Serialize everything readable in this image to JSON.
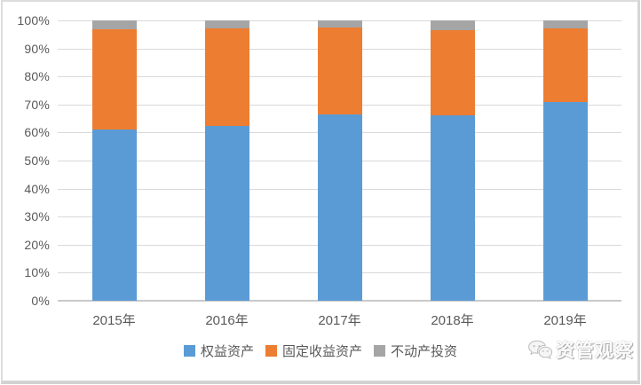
{
  "watermark": {
    "text": "资管观察",
    "icon": "wechat-icon"
  },
  "chart_data": {
    "type": "bar",
    "variant": "stacked-100-percent-column",
    "title": "",
    "xlabel": "",
    "ylabel": "",
    "categories": [
      "2015年",
      "2016年",
      "2017年",
      "2018年",
      "2019年"
    ],
    "series": [
      {
        "name": "权益资产",
        "color": "#5B9BD5",
        "values": [
          61,
          62.5,
          66.5,
          66,
          71
        ]
      },
      {
        "name": "固定收益资产",
        "color": "#ED7D31",
        "values": [
          36,
          34.5,
          31,
          30.5,
          26
        ]
      },
      {
        "name": "不动产投资",
        "color": "#A5A5A5",
        "values": [
          3,
          3,
          2.5,
          3.5,
          3
        ]
      }
    ],
    "ylim": [
      0,
      100
    ],
    "yticks": [
      0,
      10,
      20,
      30,
      40,
      50,
      60,
      70,
      80,
      90,
      100
    ],
    "ytick_labels": [
      "0%",
      "10%",
      "20%",
      "30%",
      "40%",
      "50%",
      "60%",
      "70%",
      "80%",
      "90%",
      "100%"
    ],
    "grid": true,
    "legend_position": "bottom",
    "colors": {
      "gridline": "#d9d9d9",
      "axis_line": "#c9c9c9",
      "axis_text": "#595959"
    }
  }
}
